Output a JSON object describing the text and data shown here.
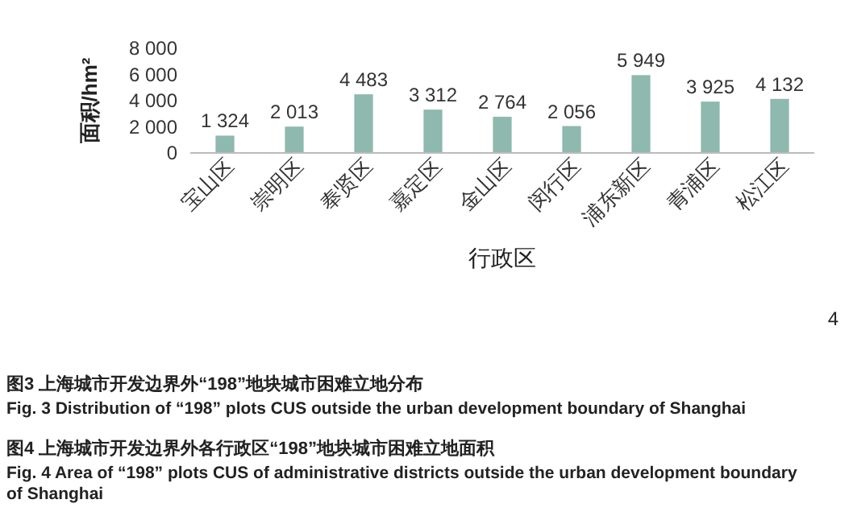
{
  "chart_data": {
    "type": "bar",
    "xlabel": "行政区",
    "ylabel": "面积/hm²",
    "categories": [
      "宝山区",
      "崇明区",
      "奉贤区",
      "嘉定区",
      "金山区",
      "闵行区",
      "浦东新区",
      "青浦区",
      "松江区"
    ],
    "values": [
      1324,
      2013,
      4483,
      3312,
      2764,
      2056,
      5949,
      3925,
      4132
    ],
    "value_labels": [
      "1 324",
      "2 013",
      "4 483",
      "3 312",
      "2 764",
      "2 056",
      "5 949",
      "3 925",
      "4 132"
    ],
    "color": "#8fb8ae",
    "ylim": [
      0,
      8000
    ],
    "yticks": [
      {
        "value": 0,
        "label": "0"
      },
      {
        "value": 2000,
        "label": "2 000"
      },
      {
        "value": 4000,
        "label": "4 000"
      },
      {
        "value": 6000,
        "label": "6 000"
      },
      {
        "value": 8000,
        "label": "8 000"
      }
    ],
    "grid": false,
    "annotations": [
      "4",
      "图3  上海城市开发边界外“198”地块城市困难立地分布",
      "Fig. 3  Distribution of “198” plots CUS outside the urban development boundary of Shanghai",
      "图4  上海城市开发边界外各行政区“198”地块城市困难立地面积",
      "Fig. 4  Area of “198” plots CUS of administrative districts outside the urban development boundary of Shanghai"
    ]
  }
}
